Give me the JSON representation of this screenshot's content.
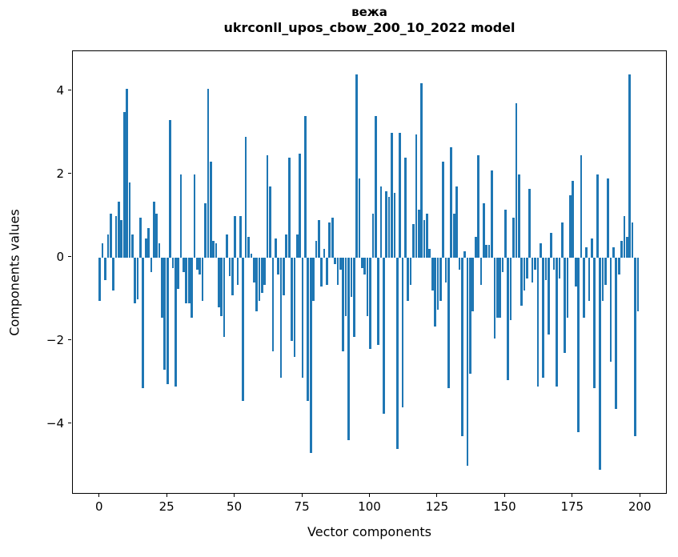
{
  "title": {
    "line1": "вежа",
    "line2": "ukrconll_upos_cbow_200_10_2022 model"
  },
  "axes": {
    "x_label": "Vector components",
    "y_label": "Components values",
    "x_ticks": [
      0,
      25,
      50,
      75,
      100,
      125,
      150,
      175,
      200
    ],
    "y_ticks": [
      4,
      2,
      0,
      -2,
      -4
    ],
    "y_tick_labels": [
      "4",
      "2",
      "0",
      "−2",
      "−4"
    ]
  },
  "chart_data": {
    "type": "bar",
    "title": "вежа\nukrconll_upos_cbow_200_10_2022 model",
    "xlabel": "Vector components",
    "ylabel": "Components values",
    "bar_color": "#1f77b4",
    "xlim": [
      -10,
      210
    ],
    "ylim": [
      -5.7,
      4.96
    ],
    "grid": false,
    "legend": "none",
    "x_start": 0,
    "values": [
      -1.05,
      0.35,
      -0.55,
      0.55,
      1.05,
      -0.8,
      1.0,
      1.35,
      0.9,
      3.5,
      4.05,
      1.8,
      0.55,
      -1.1,
      -1.0,
      0.95,
      -3.15,
      0.45,
      0.7,
      -0.35,
      1.35,
      1.05,
      0.35,
      -1.45,
      -2.7,
      -3.05,
      3.3,
      -0.25,
      -3.1,
      -0.75,
      2.0,
      -0.35,
      -1.1,
      -1.1,
      -1.45,
      2.0,
      -0.3,
      -0.4,
      -1.05,
      1.3,
      4.05,
      2.3,
      0.4,
      0.35,
      -1.2,
      -1.4,
      -1.9,
      0.55,
      -0.45,
      -0.9,
      1.0,
      -0.65,
      1.0,
      -3.45,
      2.9,
      0.5,
      0.1,
      -0.6,
      -1.3,
      -1.05,
      -0.85,
      -0.65,
      2.45,
      1.7,
      -2.25,
      0.45,
      -0.4,
      -2.9,
      -0.9,
      0.55,
      2.4,
      -2.0,
      -2.4,
      0.55,
      2.5,
      -2.9,
      3.4,
      -3.45,
      -4.7,
      -1.05,
      0.4,
      0.9,
      -0.7,
      0.2,
      -0.65,
      0.85,
      0.95,
      -0.15,
      -0.65,
      -0.3,
      -2.25,
      -1.4,
      -4.4,
      -0.95,
      -1.9,
      4.4,
      1.9,
      -0.25,
      -0.4,
      -1.4,
      -2.2,
      1.05,
      3.4,
      -2.1,
      1.7,
      -3.75,
      1.6,
      1.45,
      3.0,
      1.55,
      -4.6,
      3.0,
      -3.6,
      2.4,
      -1.05,
      -0.65,
      0.8,
      2.95,
      1.15,
      4.2,
      0.9,
      1.05,
      0.2,
      -0.8,
      -1.65,
      -1.25,
      -1.05,
      2.3,
      -0.6,
      -3.15,
      2.65,
      1.05,
      1.7,
      -0.3,
      -4.3,
      0.15,
      -5.0,
      -2.8,
      -1.3,
      0.5,
      2.45,
      -0.65,
      1.3,
      0.3,
      0.3,
      2.1,
      -1.95,
      -1.45,
      -1.45,
      -0.35,
      1.15,
      -2.95,
      -1.5,
      0.95,
      3.7,
      2.0,
      -1.15,
      -0.8,
      -0.5,
      1.65,
      -0.6,
      -0.3,
      -3.1,
      0.35,
      -2.9,
      -0.55,
      -1.85,
      0.6,
      -0.3,
      -3.1,
      -0.5,
      0.85,
      -2.3,
      -1.45,
      1.5,
      1.85,
      -0.7,
      -4.2,
      2.45,
      -1.45,
      0.25,
      -1.05,
      0.45,
      -3.15,
      2.0,
      -5.1,
      -1.05,
      -0.65,
      1.9,
      -2.5,
      0.25,
      -3.65,
      -0.4,
      0.4,
      1.0,
      0.5,
      4.4,
      0.85,
      -4.3,
      -1.3
    ]
  }
}
